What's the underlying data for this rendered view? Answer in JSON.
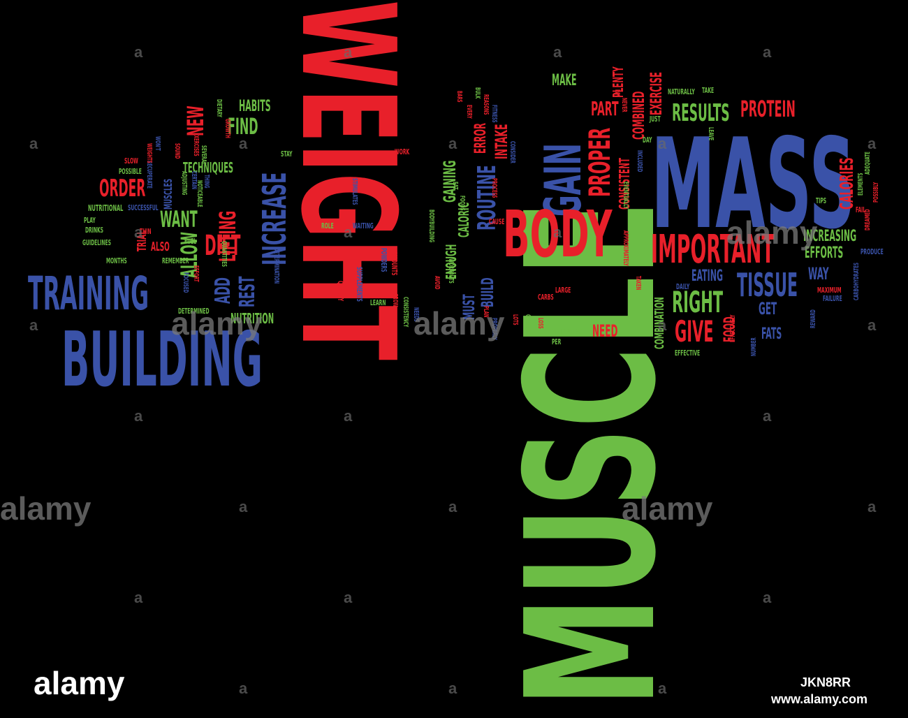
{
  "palette": {
    "background": "#000000",
    "red": "#e8202a",
    "green": "#6cbd45",
    "blue": "#3a52a8"
  },
  "words": {
    "muscle": "MUSCLE",
    "weight": "WEIGHT",
    "mass": "MASS",
    "building": "BUILDING",
    "gain": "GAIN",
    "body": "BODY",
    "training": "TRAINING",
    "increase": "INCREASE",
    "important": "IMPORTANT",
    "tissue": "TISSUE",
    "right": "RIGHT",
    "give": "GIVE",
    "protein": "PROTEIN",
    "results": "RESULTS",
    "proper": "PROPER",
    "routine": "ROUTINE",
    "diet": "DIET",
    "lifting": "LIFTING",
    "order": "ORDER",
    "find": "FIND",
    "new": "NEW",
    "want": "WANT",
    "allow": "ALLOW",
    "add": "ADD",
    "rest": "REST",
    "habits": "HABITS",
    "techniques": "TECHNIQUES",
    "nutrition": "NUTRITION",
    "calories": "CALORIES",
    "increasing": "INCREASING",
    "efforts": "EFFORTS",
    "eating": "EATING",
    "way": "WAY",
    "get": "GET",
    "food": "FOOD",
    "fats": "FATS",
    "need": "NEED",
    "make": "MAKE",
    "part": "PART",
    "plenty": "PLENTY",
    "exercise": "EXERCISE",
    "combined": "COMBINED",
    "consistent": "CONSISTENT",
    "combination": "COMBINATION",
    "build": "BUILD",
    "intake": "INTAKE",
    "error": "ERROR",
    "gaining": "GAINING",
    "caloric": "CALORIC",
    "enough": "ENOUGH",
    "must": "MUST",
    "also": "ALSO",
    "trial": "TRIAL",
    "muscles": "MUSCLES",
    "supplements": "SUPPLEMENTS",
    "powders": "POWDERS",
    "amounts": "AMOUNTS",
    "quality": "QUALITY",
    "nutritional": "NUTRITIONAL",
    "successful": "SUCCESSFUL",
    "possible": "POSSIBLE",
    "slow": "SLOW",
    "play": "PLAY",
    "drinks": "DRINKS",
    "guidelines": "GUIDELINES",
    "months": "MONTHS",
    "remember": "REMEMBER",
    "fuel": "FUEL",
    "focused": "FOCUSED",
    "determined": "DETERMINED",
    "effort": "EFFORT",
    "determination": "DETERMINATION",
    "quantities": "QUANTITIES",
    "thing": "THING",
    "noticeable": "NOTICEABLE",
    "certain": "CERTAIN",
    "adjusting": "ADJUSTING",
    "recuperate": "RECUPERATE",
    "weights": "WEIGHTS",
    "wont": "WON'T",
    "sound": "SOUND",
    "exercises": "EXERCISES",
    "several": "SEVERAL",
    "dietary": "DIETARY",
    "growth": "GROWTH",
    "stay": "STAY",
    "work": "WORK",
    "stimulates": "STIMULATES",
    "role": "ROLE",
    "waiting": "WAITING",
    "bodybuilding": "BODYBUILDING",
    "learn": "LEARN",
    "grow": "GROW",
    "consistency": "CONSISTENCY",
    "avoid": "AVOID",
    "workouts": "WORKOUTS",
    "eat": "EAT",
    "foods": "FOODS",
    "every": "EVERY",
    "fitness": "FITNESS",
    "bulk": "BULK",
    "bars": "BARS",
    "reasons": "REASONS",
    "process": "PROCESS",
    "cause": "CAUSE",
    "consider": "CONSIDER",
    "never": "NEVER",
    "pay": "PAY",
    "just": "JUST",
    "included": "INCLUDED",
    "day": "DAY",
    "eventually": "EVENTUALLY",
    "approximately": "APPROXIMATELY",
    "taken": "TAKEN",
    "naturally": "NATURALLY",
    "take": "TAKE",
    "leave": "LEAVE",
    "tips": "TIPS",
    "adequate": "ADEQUATE",
    "elements": "ELEMENTS",
    "possibly": "POSSIBLY",
    "fail": "FAIL",
    "dreamed": "DREAMED",
    "carbohydrates": "CARBOHYDRATES",
    "produce": "PRODUCE",
    "maximum": "MAXIMUM",
    "failure": "FAILURE",
    "reward": "REWARD",
    "number": "NUMBER",
    "effectively": "EFFECTIVELY",
    "daily": "DAILY",
    "large": "LARGE",
    "carbs": "CARBS",
    "lots": "LOTS",
    "crucial": "CRUCIAL",
    "loss": "LOSS",
    "attempting": "ATTEMPTING",
    "per": "PER",
    "effective": "EFFECTIVE",
    "plan": "PLAN",
    "properly": "PROPERLY",
    "needs": "NEEDS",
    "thin": "THIN"
  },
  "watermark": {
    "word": "alamy",
    "glyph": "a"
  },
  "footer": {
    "logo": "alamy",
    "image_id": "JKN8RR",
    "url": "www.alamy.com"
  }
}
